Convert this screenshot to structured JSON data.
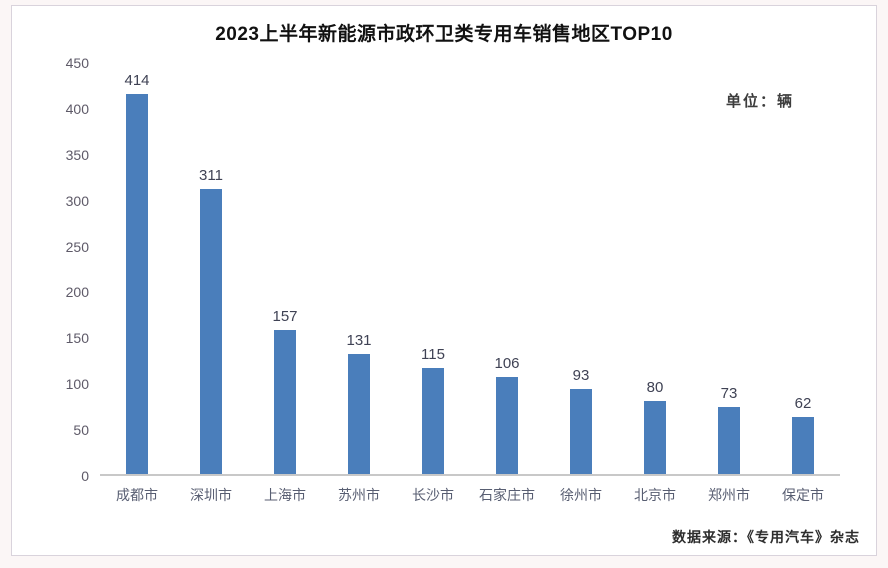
{
  "page": {
    "title": "2023上半年新能源市政环卫类专用车销售地区TOP10",
    "unit_label": "单位：辆",
    "source_label": "数据来源：《专用汽车》杂志"
  },
  "chart_data": {
    "type": "bar",
    "title": "2023上半年新能源市政环卫类专用车销售地区TOP10",
    "categories": [
      "成都市",
      "深圳市",
      "上海市",
      "苏州市",
      "长沙市",
      "石家庄市",
      "徐州市",
      "北京市",
      "郑州市",
      "保定市"
    ],
    "values": [
      414,
      311,
      157,
      131,
      115,
      106,
      93,
      80,
      73,
      62
    ],
    "unit": "辆",
    "xlabel": "",
    "ylabel": "",
    "ylim": [
      0,
      450
    ],
    "yticks": [
      450,
      400,
      350,
      300,
      250,
      200,
      150,
      100,
      50,
      0
    ],
    "grid": false,
    "legend": "none",
    "bar_color": "#4a7ebb",
    "value_label_color": "#3f4254",
    "tick_label_color": "#5e5a68",
    "category_label_color": "#585e72"
  }
}
